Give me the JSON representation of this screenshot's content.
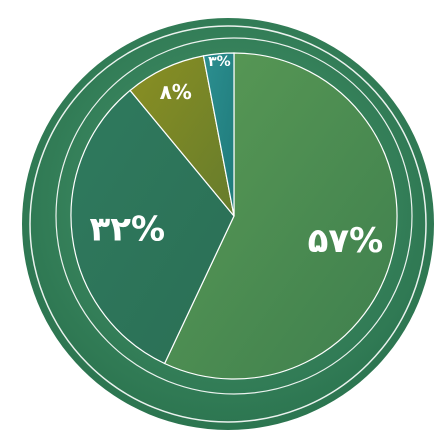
{
  "chart_data": {
    "type": "pie",
    "title": "",
    "start_angle_deg": 0,
    "direction": "clockwise",
    "slices": [
      {
        "value": 57,
        "label": "۵۷%",
        "color": "#4a8a52"
      },
      {
        "value": 32,
        "label": "۳۲%",
        "color": "#2f7a5c"
      },
      {
        "value": 8,
        "label": "۸%",
        "color": "#7b8a28"
      },
      {
        "value": 3,
        "label": "۳%",
        "color": "#2a8a8a"
      }
    ]
  },
  "colors": {
    "outer_ring": "#3f8f66",
    "outer_ring_dark": "#2f7a55",
    "ring_line": "#ffffff",
    "slice_border": "#ffffff"
  }
}
